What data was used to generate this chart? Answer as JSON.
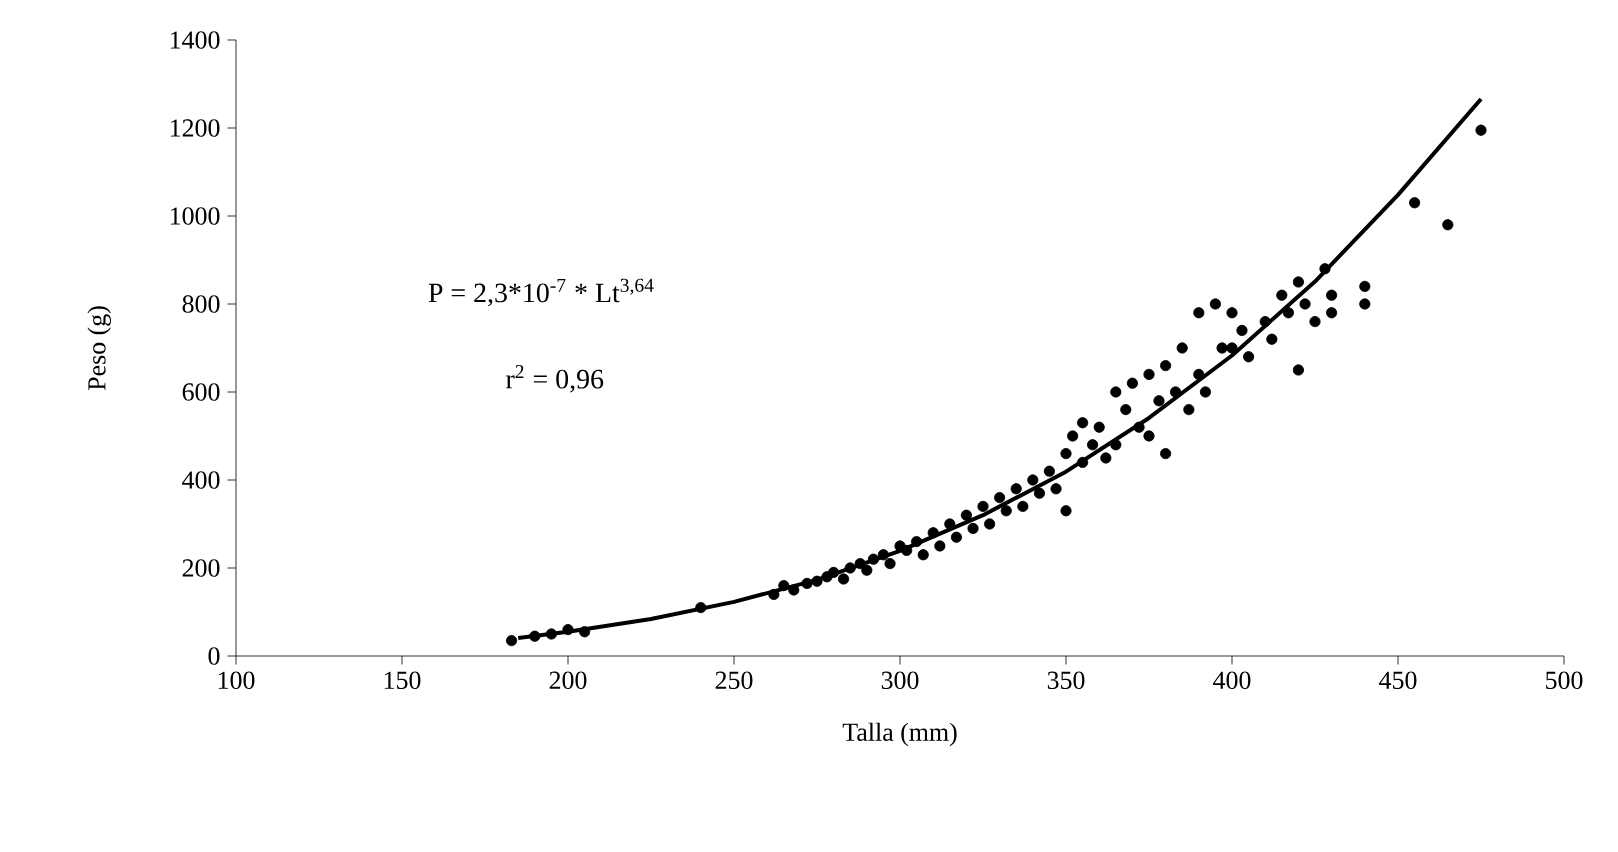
{
  "chart_data": {
    "type": "scatter",
    "xlabel": "Talla (mm)",
    "ylabel": "Peso (g)",
    "xlim": [
      100,
      500
    ],
    "xticks": [
      100,
      150,
      200,
      250,
      300,
      350,
      400,
      450,
      500
    ],
    "ylim": [
      0,
      1400
    ],
    "yticks": [
      0,
      200,
      400,
      600,
      800,
      1000,
      1200,
      1400
    ],
    "grid": false,
    "annotations": [
      "P = 2,3*10$^{-7}$ * Lt$^{3,64}$",
      "r$^{2}$ = 0,96"
    ],
    "series": [
      {
        "type": "scatter",
        "marker": "circle",
        "color": "#000000",
        "x": [
          183,
          190,
          195,
          200,
          205,
          240,
          262,
          265,
          268,
          272,
          275,
          278,
          280,
          283,
          285,
          288,
          290,
          292,
          295,
          297,
          300,
          302,
          305,
          307,
          310,
          312,
          315,
          317,
          320,
          322,
          325,
          327,
          330,
          332,
          335,
          337,
          340,
          342,
          345,
          347,
          350,
          350,
          352,
          355,
          355,
          358,
          360,
          362,
          365,
          365,
          368,
          370,
          372,
          375,
          375,
          378,
          380,
          380,
          383,
          385,
          387,
          390,
          390,
          392,
          395,
          397,
          400,
          400,
          403,
          405,
          410,
          412,
          415,
          417,
          420,
          420,
          422,
          425,
          428,
          430,
          430,
          440,
          440,
          455,
          465,
          475
        ],
        "values": [
          35,
          45,
          50,
          60,
          55,
          110,
          140,
          160,
          150,
          165,
          170,
          180,
          190,
          175,
          200,
          210,
          195,
          220,
          230,
          210,
          250,
          240,
          260,
          230,
          280,
          250,
          300,
          270,
          320,
          290,
          340,
          300,
          360,
          330,
          380,
          340,
          400,
          370,
          420,
          380,
          460,
          330,
          500,
          440,
          530,
          480,
          520,
          450,
          600,
          480,
          560,
          620,
          520,
          640,
          500,
          580,
          660,
          460,
          600,
          700,
          560,
          780,
          640,
          600,
          800,
          700,
          780,
          700,
          740,
          680,
          760,
          720,
          820,
          780,
          650,
          850,
          800,
          760,
          880,
          820,
          780,
          840,
          800,
          1030,
          980,
          1195
        ]
      },
      {
        "type": "line",
        "marker": "none",
        "line_style": "solid",
        "color": "#000000",
        "x": [
          185,
          200,
          225,
          250,
          275,
          300,
          325,
          350,
          375,
          400,
          425,
          450,
          475
        ],
        "values": [
          41,
          55,
          84,
          123,
          173,
          239,
          320,
          419,
          541,
          683,
          851,
          1048,
          1266
        ]
      }
    ]
  }
}
